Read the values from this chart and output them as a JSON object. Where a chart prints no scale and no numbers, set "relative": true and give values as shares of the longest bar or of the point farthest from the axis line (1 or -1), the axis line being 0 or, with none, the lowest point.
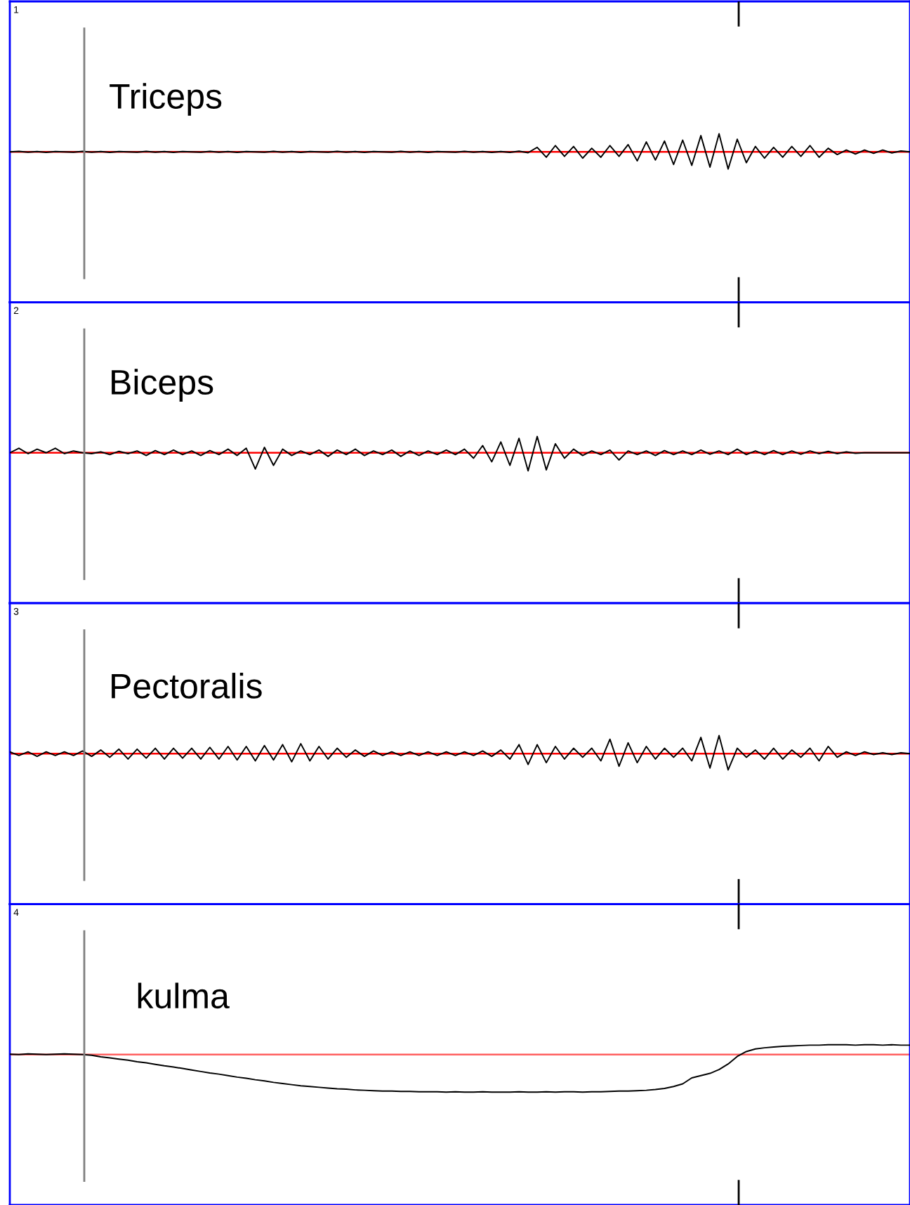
{
  "chart_data": [
    {
      "type": "line",
      "title": "Triceps",
      "annotations": [
        "1"
      ],
      "relative": true,
      "categories": [
        null,
        null,
        null,
        null,
        null,
        null,
        null,
        null,
        null,
        null,
        null,
        null,
        null,
        null,
        null,
        null,
        null,
        null,
        null,
        null,
        null,
        null,
        null,
        null,
        null,
        null,
        null,
        null,
        null,
        null,
        null,
        null,
        null,
        null,
        null,
        null,
        null,
        null,
        null,
        null,
        null,
        null,
        null,
        null,
        null,
        null,
        null,
        null,
        null,
        null,
        null,
        null,
        null,
        null,
        null,
        null,
        null,
        null,
        null,
        null,
        null,
        null,
        null,
        null,
        null,
        null,
        null,
        null,
        null,
        null,
        null,
        null,
        null,
        null,
        null,
        null,
        null,
        null,
        null,
        null,
        null,
        null,
        null,
        null,
        null,
        null,
        null,
        null,
        null,
        null,
        null,
        null,
        null,
        null,
        null,
        null,
        null,
        null,
        null,
        null
      ],
      "series": [
        {
          "color": "#000000",
          "values": [
            0,
            0.03,
            -0.02,
            0.02,
            -0.03,
            0.02,
            0,
            -0.02,
            0.03,
            -0.02,
            0.02,
            -0.03,
            0.02,
            0,
            -0.02,
            0.03,
            -0.02,
            0.02,
            -0.03,
            0.02,
            0,
            -0.02,
            0.03,
            -0.02,
            0.02,
            -0.03,
            0.02,
            0,
            -0.02,
            0.03,
            -0.02,
            0.02,
            -0.03,
            0.02,
            0,
            -0.02,
            0.03,
            -0.02,
            0.02,
            -0.03,
            0.02,
            0,
            -0.02,
            0.03,
            -0.02,
            0.02,
            -0.03,
            0.02,
            0,
            -0.02,
            0.03,
            -0.02,
            0.02,
            -0.03,
            0.02,
            -0.03,
            0.04,
            -0.05,
            0.25,
            -0.3,
            0.35,
            -0.25,
            0.3,
            -0.35,
            0.2,
            -0.3,
            0.35,
            -0.25,
            0.4,
            -0.5,
            0.55,
            -0.45,
            0.6,
            -0.7,
            0.65,
            -0.75,
            0.9,
            -0.85,
            1,
            -0.95,
            0.7,
            -0.6,
            0.3,
            -0.35,
            0.25,
            -0.3,
            0.3,
            -0.25,
            0.35,
            -0.3,
            0.2,
            -0.15,
            0.1,
            -0.12,
            0.1,
            -0.08,
            0.1,
            -0.06,
            0.05,
            0
          ]
        }
      ],
      "ref_lines": [
        {
          "axis": "y",
          "value": 0,
          "color": "#ff0000",
          "line_style": "solid"
        }
      ]
    },
    {
      "type": "line",
      "title": "Biceps",
      "annotations": [
        "2"
      ],
      "relative": true,
      "categories": [
        null,
        null,
        null,
        null,
        null,
        null,
        null,
        null,
        null,
        null,
        null,
        null,
        null,
        null,
        null,
        null,
        null,
        null,
        null,
        null,
        null,
        null,
        null,
        null,
        null,
        null,
        null,
        null,
        null,
        null,
        null,
        null,
        null,
        null,
        null,
        null,
        null,
        null,
        null,
        null,
        null,
        null,
        null,
        null,
        null,
        null,
        null,
        null,
        null,
        null,
        null,
        null,
        null,
        null,
        null,
        null,
        null,
        null,
        null,
        null,
        null,
        null,
        null,
        null,
        null,
        null,
        null,
        null,
        null,
        null,
        null,
        null,
        null,
        null,
        null,
        null,
        null,
        null,
        null,
        null,
        null,
        null,
        null,
        null,
        null,
        null,
        null,
        null,
        null,
        null,
        null,
        null,
        null,
        null,
        null,
        null,
        null,
        null,
        null,
        null
      ],
      "series": [
        {
          "color": "#000000",
          "values": [
            0,
            0.25,
            -0.05,
            0.2,
            0,
            0.25,
            -0.05,
            0.1,
            0,
            -0.05,
            0.05,
            -0.1,
            0.08,
            -0.05,
            0.1,
            -0.15,
            0.12,
            -0.1,
            0.15,
            -0.1,
            0.1,
            -0.15,
            0.12,
            -0.1,
            0.2,
            -0.15,
            0.25,
            -0.9,
            0.3,
            -0.7,
            0.2,
            -0.15,
            0.1,
            -0.1,
            0.15,
            -0.2,
            0.15,
            -0.1,
            0.2,
            -0.15,
            0.1,
            -0.1,
            0.15,
            -0.2,
            0.1,
            -0.15,
            0.1,
            -0.1,
            0.15,
            -0.1,
            0.2,
            -0.3,
            0.4,
            -0.5,
            0.6,
            -0.7,
            0.8,
            -1,
            0.9,
            -0.95,
            0.5,
            -0.3,
            0.2,
            -0.15,
            0.1,
            -0.1,
            0.15,
            -0.4,
            0.1,
            -0.1,
            0.1,
            -0.15,
            0.12,
            -0.1,
            0.1,
            -0.1,
            0.15,
            -0.08,
            0.1,
            -0.1,
            0.2,
            -0.1,
            0.1,
            -0.1,
            0.12,
            -0.1,
            0.1,
            -0.08,
            0.1,
            -0.05,
            0.08,
            -0.05,
            0.05,
            -0.03,
            0,
            0,
            0,
            0,
            0,
            0
          ]
        }
      ],
      "ref_lines": [
        {
          "axis": "y",
          "value": 0,
          "color": "#ff0000",
          "line_style": "solid"
        }
      ]
    },
    {
      "type": "line",
      "title": "Pectoralis",
      "annotations": [
        "3"
      ],
      "relative": true,
      "categories": [
        null,
        null,
        null,
        null,
        null,
        null,
        null,
        null,
        null,
        null,
        null,
        null,
        null,
        null,
        null,
        null,
        null,
        null,
        null,
        null,
        null,
        null,
        null,
        null,
        null,
        null,
        null,
        null,
        null,
        null,
        null,
        null,
        null,
        null,
        null,
        null,
        null,
        null,
        null,
        null,
        null,
        null,
        null,
        null,
        null,
        null,
        null,
        null,
        null,
        null,
        null,
        null,
        null,
        null,
        null,
        null,
        null,
        null,
        null,
        null,
        null,
        null,
        null,
        null,
        null,
        null,
        null,
        null,
        null,
        null,
        null,
        null,
        null,
        null,
        null,
        null,
        null,
        null,
        null,
        null,
        null,
        null,
        null,
        null,
        null,
        null,
        null,
        null,
        null,
        null,
        null,
        null,
        null,
        null,
        null,
        null,
        null,
        null,
        null,
        null
      ],
      "series": [
        {
          "color": "#000000",
          "values": [
            0.1,
            -0.1,
            0.1,
            -0.15,
            0.1,
            -0.1,
            0.1,
            -0.1,
            0.15,
            -0.15,
            0.2,
            -0.2,
            0.25,
            -0.3,
            0.25,
            -0.25,
            0.3,
            -0.3,
            0.3,
            -0.25,
            0.3,
            -0.3,
            0.35,
            -0.3,
            0.4,
            -0.35,
            0.4,
            -0.4,
            0.45,
            -0.35,
            0.5,
            -0.45,
            0.55,
            -0.4,
            0.4,
            -0.3,
            0.3,
            -0.2,
            0.2,
            -0.15,
            0.15,
            -0.1,
            0.1,
            -0.1,
            0.1,
            -0.1,
            0.1,
            -0.1,
            0.1,
            -0.1,
            0.1,
            -0.1,
            0.15,
            -0.15,
            0.2,
            -0.3,
            0.5,
            -0.6,
            0.5,
            -0.5,
            0.4,
            -0.3,
            0.3,
            -0.2,
            0.3,
            -0.4,
            0.8,
            -0.7,
            0.6,
            -0.5,
            0.4,
            -0.3,
            0.3,
            -0.2,
            0.3,
            -0.4,
            0.9,
            -0.8,
            1,
            -0.9,
            0.3,
            -0.2,
            0.2,
            -0.3,
            0.3,
            -0.3,
            0.2,
            -0.2,
            0.3,
            -0.4,
            0.4,
            -0.2,
            0.1,
            -0.1,
            0.1,
            -0.05,
            0.05,
            -0.05,
            0.05,
            0
          ]
        }
      ],
      "ref_lines": [
        {
          "axis": "y",
          "value": 0,
          "color": "#ff0000",
          "line_style": "solid"
        }
      ]
    },
    {
      "type": "line",
      "title": "kulma",
      "annotations": [
        "4"
      ],
      "relative": true,
      "categories": [
        null,
        null,
        null,
        null,
        null,
        null,
        null,
        null,
        null,
        null,
        null,
        null,
        null,
        null,
        null,
        null,
        null,
        null,
        null,
        null,
        null,
        null,
        null,
        null,
        null,
        null,
        null,
        null,
        null,
        null,
        null,
        null,
        null,
        null,
        null,
        null,
        null,
        null,
        null,
        null,
        null,
        null,
        null,
        null,
        null,
        null,
        null,
        null,
        null,
        null,
        null,
        null,
        null,
        null,
        null,
        null,
        null,
        null,
        null,
        null,
        null,
        null,
        null,
        null,
        null,
        null,
        null,
        null,
        null,
        null,
        null,
        null,
        null,
        null,
        null,
        null,
        null,
        null,
        null,
        null,
        null,
        null,
        null,
        null,
        null,
        null,
        null,
        null,
        null,
        null,
        null,
        null,
        null,
        null,
        null,
        null,
        null,
        null,
        null,
        null
      ],
      "series": [
        {
          "color": "#000000",
          "values": [
            0.01,
            0,
            0.02,
            0.01,
            0,
            0.01,
            0.02,
            0.01,
            0,
            -0.02,
            -0.06,
            -0.09,
            -0.12,
            -0.15,
            -0.19,
            -0.22,
            -0.26,
            -0.3,
            -0.33,
            -0.37,
            -0.41,
            -0.45,
            -0.49,
            -0.52,
            -0.56,
            -0.6,
            -0.63,
            -0.67,
            -0.7,
            -0.74,
            -0.77,
            -0.8,
            -0.83,
            -0.85,
            -0.87,
            -0.89,
            -0.91,
            -0.92,
            -0.94,
            -0.95,
            -0.96,
            -0.97,
            -0.97,
            -0.98,
            -0.98,
            -0.99,
            -0.99,
            -0.99,
            -1,
            -0.99,
            -1,
            -1,
            -0.99,
            -1,
            -1,
            -1,
            -0.99,
            -1,
            -1,
            -0.99,
            -1,
            -0.99,
            -0.99,
            -1,
            -0.99,
            -0.99,
            -0.98,
            -0.97,
            -0.97,
            -0.96,
            -0.95,
            -0.93,
            -0.9,
            -0.85,
            -0.78,
            -0.62,
            -0.56,
            -0.5,
            -0.4,
            -0.25,
            -0.05,
            0.08,
            0.15,
            0.18,
            0.2,
            0.22,
            0.23,
            0.24,
            0.25,
            0.25,
            0.26,
            0.26,
            0.26,
            0.25,
            0.26,
            0.26,
            0.25,
            0.26,
            0.25,
            0.25
          ]
        }
      ],
      "ref_lines": [
        {
          "axis": "y",
          "value": 0,
          "color": "#ff6060",
          "line_style": "solid"
        }
      ]
    }
  ]
}
